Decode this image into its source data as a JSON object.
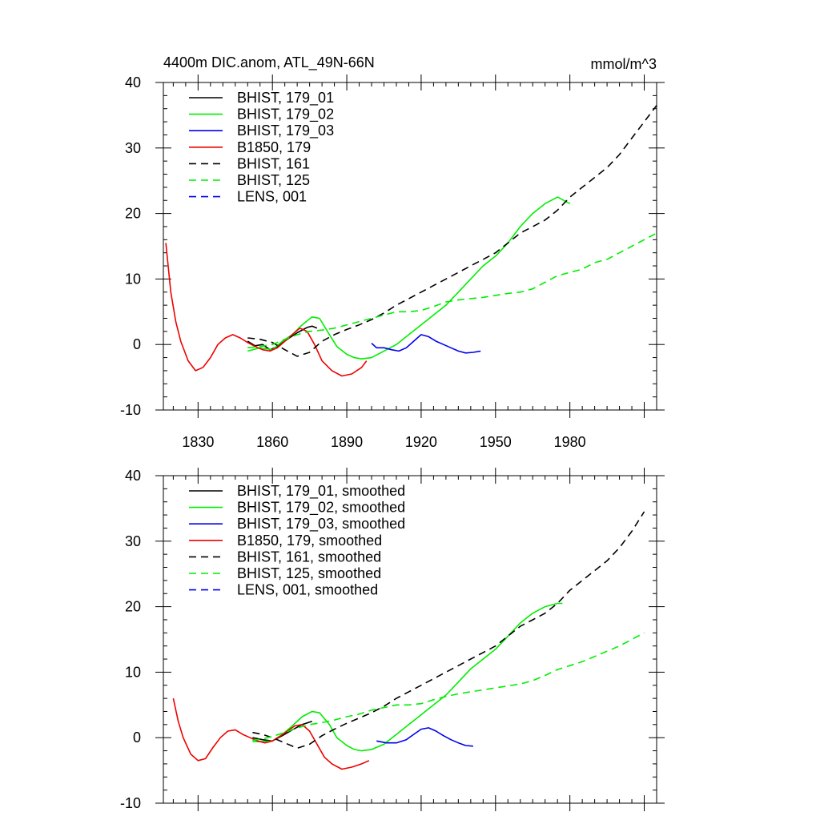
{
  "chart_data": [
    {
      "type": "line",
      "title": "4400m DIC.anom, ATL_49N-66N",
      "units": "mmol/m^3",
      "xlabel": "",
      "ylabel": "",
      "xlim": [
        1816,
        2015
      ],
      "ylim": [
        -10,
        40
      ],
      "x_ticks": [
        1830,
        1860,
        1890,
        1920,
        1950,
        1980
      ],
      "y_ticks": [
        -10,
        0,
        10,
        20,
        30,
        40
      ],
      "legend_position": "top-left",
      "series": [
        {
          "name": "BHIST, 179_01",
          "color": "#000000",
          "dash": "solid",
          "x": [
            1850,
            1853,
            1856,
            1859,
            1862,
            1866,
            1870,
            1874,
            1876,
            1878
          ],
          "y": [
            0.5,
            -0.2,
            0.0,
            -0.8,
            -0.3,
            0.8,
            1.8,
            2.6,
            2.8,
            2.5
          ]
        },
        {
          "name": "BHIST, 179_02",
          "color": "#00ee00",
          "dash": "solid",
          "x": [
            1850,
            1855,
            1860,
            1864,
            1868,
            1872,
            1876,
            1879,
            1883,
            1886,
            1890,
            1893,
            1896,
            1900,
            1905,
            1910,
            1915,
            1920,
            1925,
            1930,
            1935,
            1940,
            1945,
            1950,
            1955,
            1960,
            1965,
            1970,
            1975,
            1980
          ],
          "y": [
            -1.0,
            -0.5,
            -0.8,
            0.5,
            1.5,
            3.0,
            4.2,
            4.0,
            1.5,
            -0.3,
            -1.5,
            -2.0,
            -2.2,
            -2.0,
            -1.0,
            0.0,
            1.5,
            3.0,
            4.5,
            6.0,
            8.0,
            10.0,
            12.0,
            13.5,
            15.5,
            18.0,
            20.0,
            21.5,
            22.5,
            21.5
          ]
        },
        {
          "name": "BHIST, 179_03",
          "color": "#0000ee",
          "dash": "solid",
          "x": [
            1900,
            1902,
            1905,
            1908,
            1911,
            1914,
            1917,
            1920,
            1923,
            1926,
            1929,
            1932,
            1935,
            1938,
            1941,
            1944
          ],
          "y": [
            0.2,
            -0.5,
            -0.5,
            -0.8,
            -1.0,
            -0.5,
            0.5,
            1.5,
            1.2,
            0.5,
            0.0,
            -0.5,
            -1.0,
            -1.3,
            -1.2,
            -1.0
          ]
        },
        {
          "name": "B1850, 179",
          "color": "#ee0000",
          "dash": "solid",
          "x": [
            1817,
            1819,
            1821,
            1823,
            1826,
            1829,
            1832,
            1835,
            1838,
            1841,
            1844,
            1847,
            1850,
            1853,
            1856,
            1859,
            1862,
            1865,
            1868,
            1871,
            1874,
            1877,
            1880,
            1884,
            1888,
            1892,
            1896,
            1898
          ],
          "y": [
            15.5,
            8.0,
            3.5,
            0.5,
            -2.5,
            -4.0,
            -3.5,
            -2.0,
            0.0,
            1.0,
            1.5,
            1.0,
            0.3,
            -0.3,
            -0.8,
            -1.0,
            -0.5,
            0.5,
            1.5,
            2.5,
            2.0,
            0.0,
            -2.5,
            -4.0,
            -4.8,
            -4.5,
            -3.5,
            -2.5
          ]
        },
        {
          "name": "BHIST, 161",
          "color": "#000000",
          "dash": "dashed",
          "x": [
            1850,
            1855,
            1860,
            1865,
            1870,
            1875,
            1880,
            1885,
            1890,
            1895,
            1900,
            1905,
            1910,
            1915,
            1920,
            1925,
            1930,
            1935,
            1940,
            1945,
            1950,
            1955,
            1960,
            1965,
            1970,
            1975,
            1980,
            1985,
            1990,
            1995,
            2000,
            2005,
            2010,
            2015
          ],
          "y": [
            1.0,
            0.8,
            0.3,
            -0.8,
            -1.8,
            -1.2,
            0.5,
            1.5,
            2.3,
            3.0,
            3.8,
            4.8,
            6.0,
            7.0,
            8.0,
            9.0,
            10.0,
            11.0,
            12.0,
            13.0,
            14.0,
            15.5,
            17.0,
            18.0,
            19.0,
            20.5,
            22.5,
            24.0,
            25.5,
            27.0,
            29.0,
            31.5,
            34.0,
            36.5
          ]
        },
        {
          "name": "BHIST, 125",
          "color": "#00ee00",
          "dash": "dashed",
          "x": [
            1850,
            1855,
            1860,
            1865,
            1870,
            1875,
            1880,
            1885,
            1890,
            1895,
            1900,
            1905,
            1910,
            1915,
            1920,
            1925,
            1930,
            1935,
            1940,
            1945,
            1950,
            1955,
            1960,
            1965,
            1970,
            1975,
            1980,
            1985,
            1990,
            1995,
            2000,
            2005,
            2010,
            2015
          ],
          "y": [
            -0.5,
            -0.3,
            0.0,
            0.8,
            1.5,
            2.0,
            2.2,
            2.5,
            3.0,
            3.5,
            4.0,
            4.5,
            5.0,
            5.0,
            5.2,
            5.8,
            6.5,
            6.8,
            7.0,
            7.2,
            7.5,
            7.8,
            8.0,
            8.5,
            9.5,
            10.5,
            11.0,
            11.5,
            12.5,
            13.0,
            14.0,
            15.0,
            16.0,
            17.0
          ]
        },
        {
          "name": "LENS, 001",
          "color": "#0000ee",
          "dash": "dashed",
          "x": [],
          "y": []
        }
      ]
    },
    {
      "type": "line",
      "title": "",
      "units": "",
      "xlabel": "",
      "ylabel": "",
      "xlim": [
        1816,
        2015
      ],
      "ylim": [
        -10,
        40
      ],
      "x_ticks": [
        1830,
        1860,
        1890,
        1920,
        1950,
        1980
      ],
      "y_ticks": [
        -10,
        0,
        10,
        20,
        30,
        40
      ],
      "legend_position": "top-left",
      "series": [
        {
          "name": "BHIST, 179_01, smoothed",
          "color": "#000000",
          "dash": "solid",
          "x": [
            1852,
            1856,
            1860,
            1864,
            1868,
            1872,
            1876
          ],
          "y": [
            0.0,
            -0.3,
            -0.5,
            0.3,
            1.2,
            2.0,
            2.5
          ]
        },
        {
          "name": "BHIST, 179_02, smoothed",
          "color": "#00ee00",
          "dash": "solid",
          "x": [
            1852,
            1856,
            1860,
            1864,
            1868,
            1872,
            1876,
            1879,
            1883,
            1886,
            1890,
            1893,
            1896,
            1900,
            1905,
            1910,
            1915,
            1920,
            1925,
            1930,
            1935,
            1940,
            1945,
            1950,
            1955,
            1960,
            1965,
            1970,
            1975,
            1977
          ],
          "y": [
            -0.6,
            -0.6,
            -0.5,
            0.5,
            1.8,
            3.2,
            4.0,
            3.8,
            2.0,
            0.0,
            -1.2,
            -1.8,
            -2.0,
            -1.8,
            -1.0,
            0.5,
            2.0,
            3.5,
            5.0,
            6.5,
            8.5,
            10.5,
            12.0,
            13.5,
            15.5,
            17.5,
            19.0,
            20.0,
            20.5,
            20.5
          ]
        },
        {
          "name": "BHIST, 179_03, smoothed",
          "color": "#0000ee",
          "dash": "solid",
          "x": [
            1902,
            1906,
            1910,
            1914,
            1917,
            1920,
            1923,
            1926,
            1929,
            1932,
            1935,
            1938,
            1941
          ],
          "y": [
            -0.5,
            -0.8,
            -0.8,
            -0.3,
            0.5,
            1.3,
            1.5,
            1.0,
            0.3,
            -0.3,
            -0.8,
            -1.2,
            -1.3
          ]
        },
        {
          "name": "B1850, 179, smoothed",
          "color": "#ee0000",
          "dash": "solid",
          "x": [
            1820,
            1822,
            1824,
            1827,
            1830,
            1833,
            1836,
            1839,
            1842,
            1845,
            1848,
            1851,
            1854,
            1857,
            1860,
            1863,
            1866,
            1869,
            1872,
            1875,
            1878,
            1881,
            1884,
            1888,
            1892,
            1896,
            1899
          ],
          "y": [
            6.0,
            2.5,
            0.0,
            -2.5,
            -3.5,
            -3.2,
            -1.5,
            0.0,
            1.0,
            1.2,
            0.5,
            0.0,
            -0.5,
            -0.8,
            -0.5,
            0.2,
            1.0,
            1.8,
            2.0,
            1.0,
            -1.0,
            -3.0,
            -4.0,
            -4.8,
            -4.5,
            -4.0,
            -3.5
          ]
        },
        {
          "name": "BHIST, 161, smoothed",
          "color": "#000000",
          "dash": "dashed",
          "x": [
            1852,
            1856,
            1860,
            1865,
            1870,
            1875,
            1880,
            1885,
            1890,
            1895,
            1900,
            1905,
            1910,
            1915,
            1920,
            1925,
            1930,
            1935,
            1940,
            1945,
            1950,
            1955,
            1960,
            1965,
            1970,
            1975,
            1980,
            1985,
            1990,
            1995,
            2000,
            2005,
            2010
          ],
          "y": [
            0.8,
            0.5,
            0.0,
            -0.8,
            -1.6,
            -1.0,
            0.3,
            1.3,
            2.2,
            3.0,
            3.8,
            4.8,
            6.0,
            7.0,
            8.0,
            9.0,
            10.0,
            11.0,
            12.0,
            13.0,
            14.0,
            15.5,
            17.0,
            18.0,
            19.0,
            20.5,
            22.5,
            24.0,
            25.5,
            27.0,
            29.0,
            31.5,
            34.5
          ]
        },
        {
          "name": "BHIST, 125, smoothed",
          "color": "#00ee00",
          "dash": "dashed",
          "x": [
            1852,
            1856,
            1860,
            1865,
            1870,
            1875,
            1880,
            1885,
            1890,
            1895,
            1900,
            1905,
            1910,
            1915,
            1920,
            1925,
            1930,
            1935,
            1940,
            1945,
            1950,
            1955,
            1960,
            1965,
            1970,
            1975,
            1980,
            1985,
            1990,
            1995,
            2000,
            2005,
            2010
          ],
          "y": [
            -0.4,
            -0.2,
            0.2,
            0.8,
            1.5,
            2.0,
            2.3,
            2.7,
            3.2,
            3.6,
            4.2,
            4.6,
            5.0,
            5.0,
            5.2,
            5.8,
            6.3,
            6.7,
            7.0,
            7.3,
            7.6,
            7.9,
            8.2,
            8.7,
            9.5,
            10.4,
            11.0,
            11.6,
            12.4,
            13.2,
            14.0,
            15.0,
            16.0
          ]
        },
        {
          "name": "LENS, 001, smoothed",
          "color": "#0000ee",
          "dash": "dashed",
          "x": [],
          "y": []
        }
      ]
    }
  ]
}
